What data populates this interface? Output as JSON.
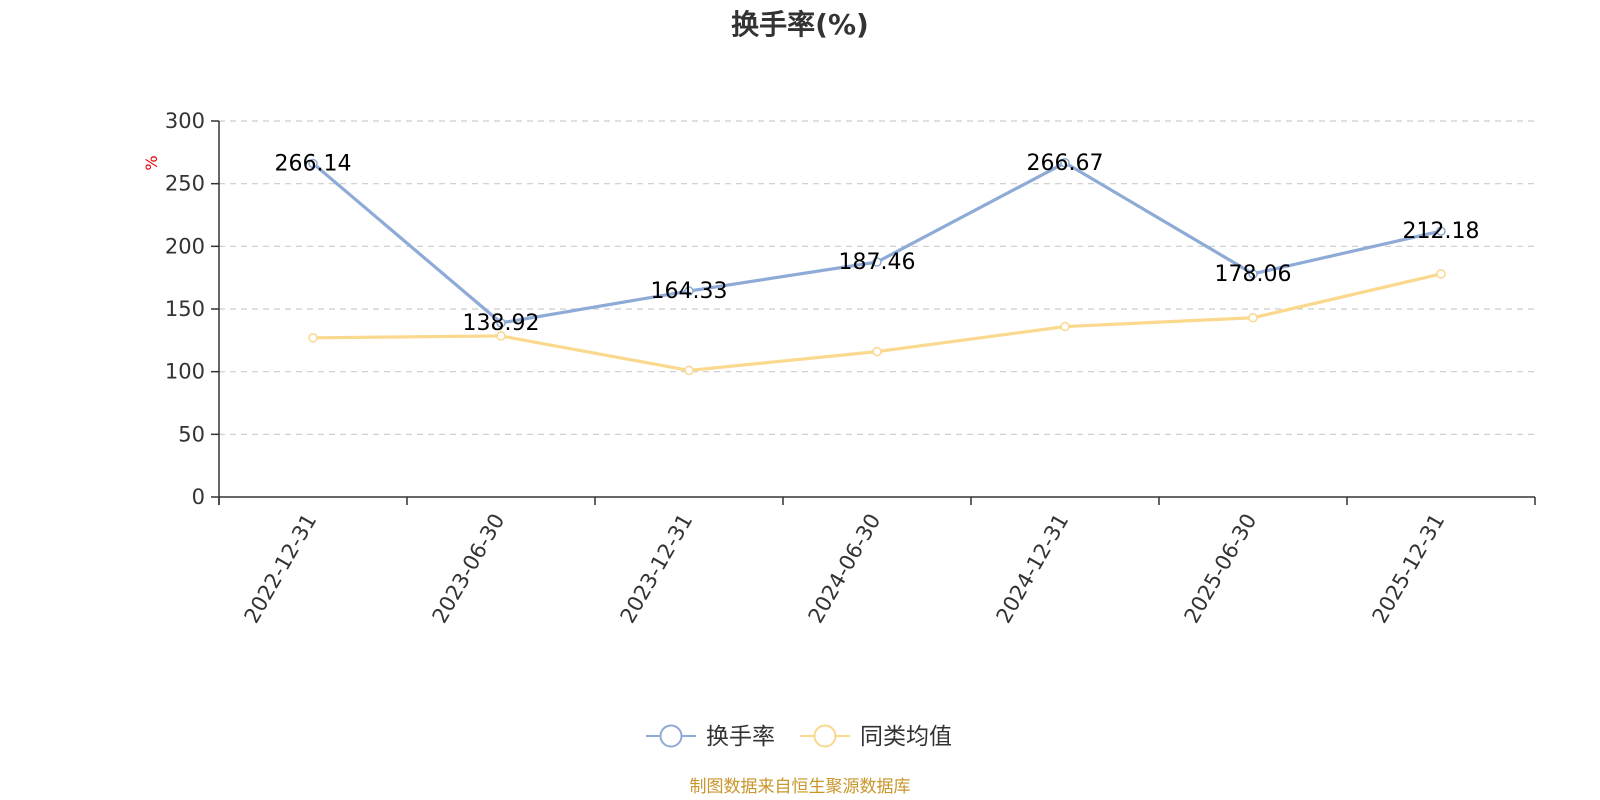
{
  "chart_data": {
    "type": "line",
    "title": "换手率(%)",
    "ylabel": "%",
    "xlabel": "",
    "ylim": [
      0,
      300
    ],
    "yticks": [
      0,
      50,
      100,
      150,
      200,
      250,
      300
    ],
    "categories": [
      "2022-12-31",
      "2023-06-30",
      "2023-12-31",
      "2024-06-30",
      "2024-12-31",
      "2025-06-30",
      "2025-12-31"
    ],
    "series": [
      {
        "name": "换手率",
        "color": "#8eaad6",
        "show_labels": true,
        "labels": [
          "266.14",
          "138.92",
          "164.33",
          "187.46",
          "266.67",
          "178.06",
          "212.18"
        ],
        "values": [
          266.14,
          138.92,
          164.33,
          187.46,
          266.67,
          178.06,
          212.18
        ]
      },
      {
        "name": "同类均值",
        "color": "#fad88e",
        "show_labels": false,
        "values": [
          127.0,
          128.5,
          101.0,
          116.0,
          136.0,
          143.0,
          178.0
        ]
      }
    ],
    "grid": true,
    "legend": "bottom-center",
    "source": "制图数据来自恒生聚源数据库"
  },
  "colors": {
    "axis": "#333333",
    "grid": "#cccccc",
    "unit": "#e60000",
    "source": "#c9962b"
  }
}
